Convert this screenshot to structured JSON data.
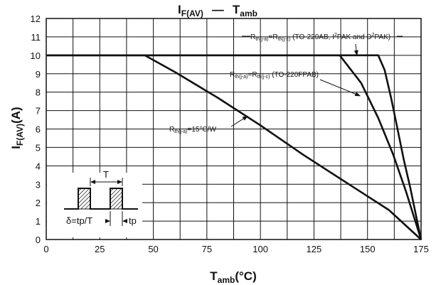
{
  "chart_data": {
    "type": "line",
    "title": {
      "main": "I",
      "main_sub": "F(AV)",
      "dash": "—",
      "right": "T",
      "right_sub": "amb"
    },
    "xlabel": {
      "main": "T",
      "main_sub": "amb",
      "rest": "(°C)"
    },
    "ylabel": {
      "main": "I",
      "main_sub": "F(AV)",
      "rest": "(A)"
    },
    "xlim": [
      0,
      175
    ],
    "ylim": [
      0,
      12
    ],
    "x_ticks": [
      0,
      25,
      50,
      75,
      100,
      125,
      150,
      175
    ],
    "y_ticks": [
      0,
      1,
      2,
      3,
      4,
      5,
      6,
      7,
      8,
      9,
      10,
      11,
      12
    ],
    "grid": true,
    "series": [
      {
        "points": [
          [
            0,
            10
          ],
          [
            46,
            10
          ],
          [
            60,
            9.1
          ],
          [
            80,
            7.7
          ],
          [
            100,
            6.2
          ],
          [
            120,
            4.6
          ],
          [
            140,
            3.1
          ],
          [
            160,
            1.6
          ],
          [
            175,
            0
          ]
        ]
      },
      {
        "points": [
          [
            0,
            10
          ],
          [
            137,
            10
          ],
          [
            147,
            8.5
          ],
          [
            155,
            6.6
          ],
          [
            162,
            4.6
          ],
          [
            168,
            2.6
          ],
          [
            175,
            0
          ]
        ]
      },
      {
        "points": [
          [
            0,
            10
          ],
          [
            155,
            10
          ],
          [
            158,
            9.2
          ],
          [
            161,
            7.7
          ],
          [
            164,
            6.0
          ],
          [
            167,
            4.3
          ],
          [
            170,
            2.8
          ],
          [
            173,
            1.1
          ],
          [
            175,
            0
          ]
        ]
      }
    ],
    "annotations": [
      {
        "parts": [
          [
            "R",
            ""
          ],
          [
            "th(j-a)",
            "sub"
          ],
          [
            "=R",
            ""
          ],
          [
            "th(j-c)",
            "sub"
          ],
          [
            " (TO-220AB, I",
            ""
          ],
          [
            "2",
            "sup"
          ],
          [
            "PAK and D",
            ""
          ],
          [
            "2",
            "sup"
          ],
          [
            "PAK)",
            ""
          ]
        ],
        "arrow_to": [
          145,
          10
        ]
      },
      {
        "parts": [
          [
            "R",
            ""
          ],
          [
            "th(j-a)",
            "sub"
          ],
          [
            "=R",
            ""
          ],
          [
            "th(j-c)",
            "sub"
          ],
          [
            " (TO-220FPAB)",
            ""
          ]
        ],
        "arrow_to": [
          146.5,
          7.8
        ]
      },
      {
        "parts": [
          [
            "R",
            ""
          ],
          [
            "th(j-a)",
            "sub"
          ],
          [
            "=15°C/W",
            ""
          ]
        ],
        "arrow_to": [
          94,
          6.7
        ]
      }
    ],
    "inset": {
      "period_label": "T",
      "duty_label": "δ=tp/T",
      "pulse_label": "tp"
    }
  }
}
